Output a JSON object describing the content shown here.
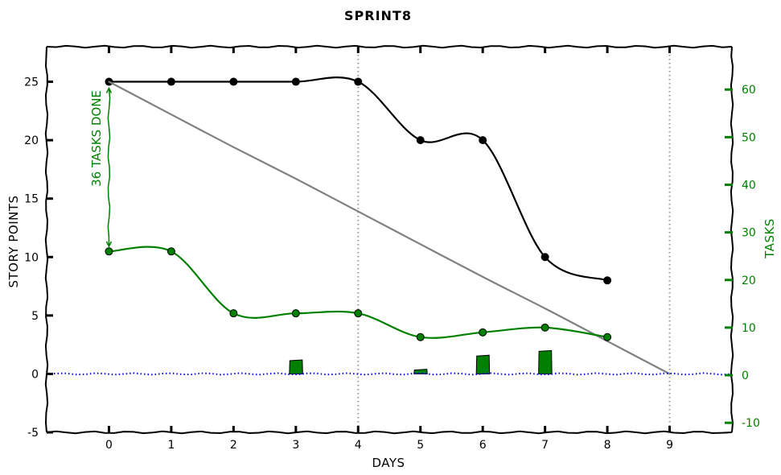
{
  "chart_data": {
    "type": "line",
    "title": "SPRINT8",
    "xlabel": "DAYS",
    "ylabel": "STORY POINTS",
    "y2label": "TASKS",
    "xlim": [
      -1,
      10
    ],
    "ylim": [
      -5,
      28
    ],
    "y2lim": [
      -12,
      69
    ],
    "x_ticks": [
      0,
      1,
      2,
      3,
      4,
      5,
      6,
      7,
      8,
      9
    ],
    "y_ticks": [
      -5,
      0,
      5,
      10,
      15,
      20,
      25
    ],
    "y2_ticks": [
      -10,
      0,
      10,
      20,
      30,
      40,
      50,
      60
    ],
    "vertical_dotted_lines_x": [
      4,
      9
    ],
    "series": [
      {
        "name": "",
        "axis": "left",
        "color": "#000000",
        "x": [
          0,
          1,
          2,
          3,
          4,
          5,
          6,
          7,
          8
        ],
        "values": [
          25,
          25,
          25,
          25,
          25,
          20,
          20,
          10,
          8
        ]
      },
      {
        "name": "",
        "axis": "left",
        "color": "#808080",
        "markers": false,
        "x": [
          0,
          1,
          2,
          3,
          4,
          5,
          6,
          7,
          8,
          9
        ],
        "values": [
          25,
          22.2,
          19.4,
          16.7,
          13.9,
          11.1,
          8.3,
          5.6,
          2.8,
          0
        ]
      },
      {
        "name": "",
        "axis": "right",
        "color": "#008000",
        "x": [
          0,
          1,
          2,
          3,
          4,
          5,
          6,
          7,
          8
        ],
        "values": [
          26,
          26,
          13,
          13,
          13,
          8,
          9,
          10,
          8
        ]
      },
      {
        "name": "",
        "axis": "left",
        "color": "#0000ff",
        "style": "dotted",
        "markers": false,
        "x": [
          -1,
          10
        ],
        "values": [
          0,
          0
        ]
      }
    ],
    "bars": {
      "axis": "left",
      "color": "#008000",
      "x": [
        3,
        5,
        6,
        7
      ],
      "values": [
        1.2,
        0.4,
        1.6,
        2.0
      ]
    },
    "annotation": {
      "text": "36 TASKS DONE",
      "color": "#008000",
      "x": 0,
      "y_from": 25,
      "y_to": 10.5
    }
  }
}
